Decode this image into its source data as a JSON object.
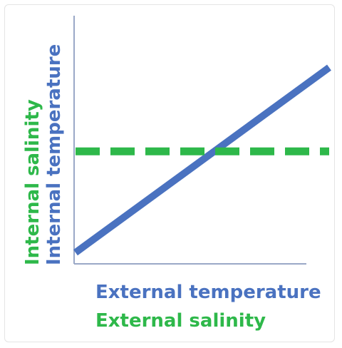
{
  "chart_data": {
    "type": "line",
    "xlabel": [
      "External temperature",
      "External salinity"
    ],
    "ylabel": [
      "Internal temperature",
      "Internal salinity"
    ],
    "xlim": [
      0,
      1
    ],
    "ylim": [
      0,
      1
    ],
    "grid": false,
    "tick_labels": false,
    "series": [
      {
        "x": [
          0,
          1
        ],
        "y": [
          0.04,
          0.79
        ],
        "color": "#4a72c0",
        "line_style": "solid"
      },
      {
        "x": [
          0,
          1
        ],
        "y": [
          0.45,
          0.45
        ],
        "color": "#2eb84a",
        "line_style": "dashed"
      }
    ]
  },
  "colors": {
    "temperature": "#4a72c0",
    "salinity": "#2eb84a",
    "axis": "#9aa8c7"
  }
}
